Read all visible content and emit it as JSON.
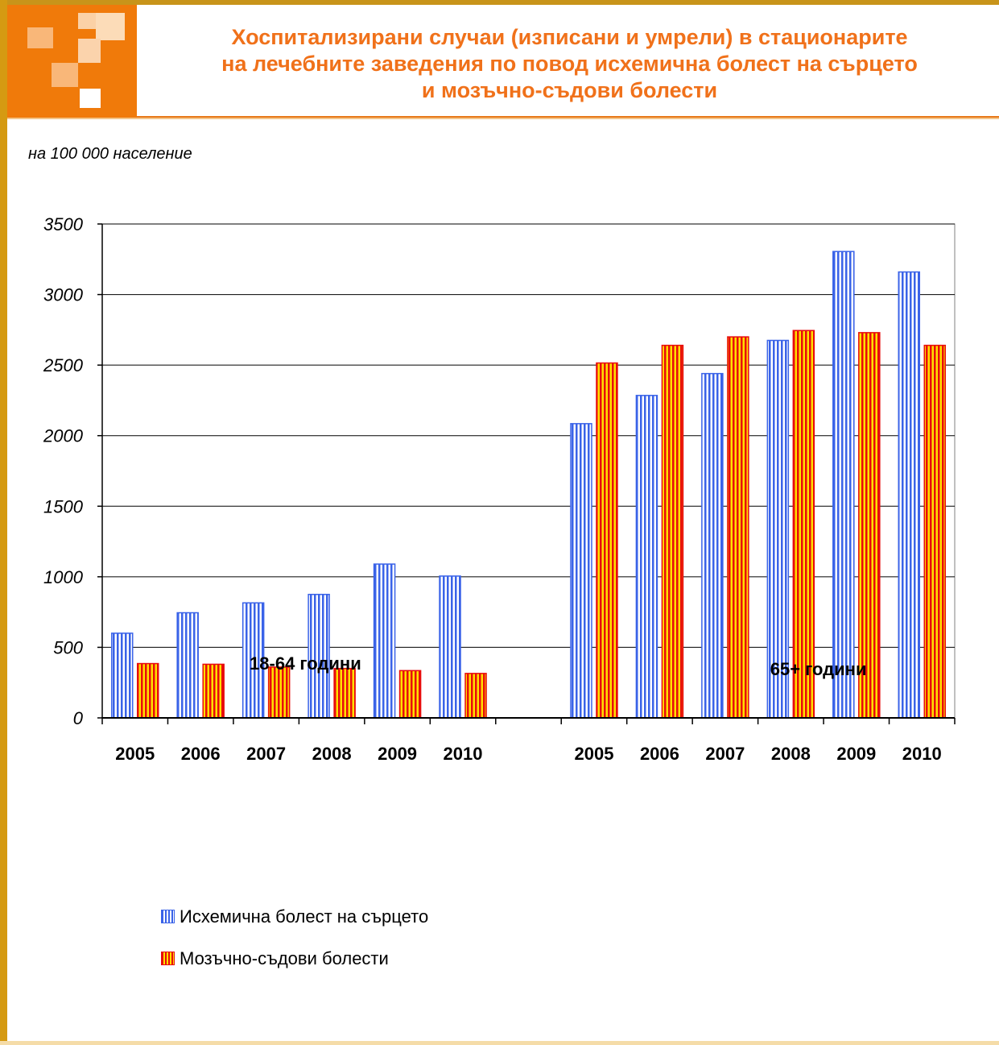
{
  "header": {
    "title_lines": [
      "Хоспитализирани случаи (изписани и умрели) в стационарите",
      "на лечебните заведения по повод исхемична болест на сърцето",
      "и мозъчно-съдови болести"
    ],
    "subtitle": "на 100 000 население"
  },
  "colors": {
    "accent": "#f0711a",
    "frame": "#d59a12",
    "series_blue": "#3a63e8",
    "series_red": "#e80c0c",
    "series_red_stripe": "#ffe000"
  },
  "chart_data": {
    "type": "bar",
    "title": "Хоспитализирани случаи (изписани и умрели) в стационарите на лечебните заведения по повод исхемична болест на сърцето и мозъчно-съдови болести",
    "ylabel": "на 100 000 население",
    "ylim": [
      0,
      3500
    ],
    "yticks": [
      0,
      500,
      1000,
      1500,
      2000,
      2500,
      3000,
      3500
    ],
    "grid": true,
    "legend_position": "bottom-left",
    "groups": [
      {
        "label": "18-64 години",
        "categories": [
          "2005",
          "2006",
          "2007",
          "2008",
          "2009",
          "2010"
        ],
        "series": [
          {
            "name": "Исхемична болест на сърцето",
            "values": [
              600,
              745,
              815,
              875,
              1090,
              1005
            ]
          },
          {
            "name": "Мозъчно-съдови болести",
            "values": [
              385,
              380,
              360,
              350,
              335,
              315
            ]
          }
        ]
      },
      {
        "label": "65+ години",
        "categories": [
          "2005",
          "2006",
          "2007",
          "2008",
          "2009",
          "2010"
        ],
        "series": [
          {
            "name": "Исхемична болест на сърцето",
            "values": [
              2085,
              2285,
              2440,
              2675,
              3305,
              3160
            ]
          },
          {
            "name": "Мозъчно-съдови болести",
            "values": [
              2515,
              2640,
              2700,
              2745,
              2730,
              2640
            ]
          }
        ]
      }
    ],
    "legend": [
      "Исхемична болест на сърцето",
      "Мозъчно-съдови болести"
    ]
  }
}
